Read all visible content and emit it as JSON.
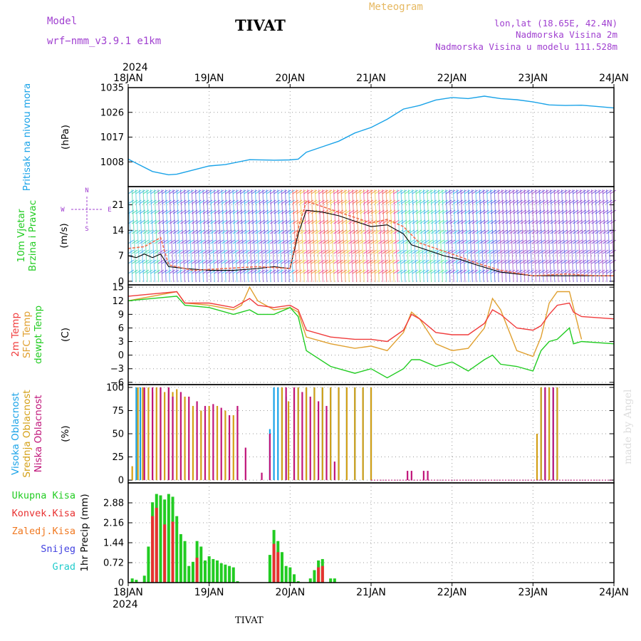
{
  "header": {
    "model_label": "Model",
    "model_name": "wrf−nmm_v3.9.1  e1km",
    "title": "TIVAT",
    "meteogram": "Meteogram",
    "lonlat": "lon,lat (18.65E, 42.4N)",
    "altitude": "Nadmorska Visina 2m",
    "model_altitude": "Nadmorska Visina u modelu 111.528m",
    "year_top": "2024",
    "year_bottom": "2024",
    "footer_station": "TIVAT",
    "watermark": "made by Angel"
  },
  "colors": {
    "pressure": "#1aa3e8",
    "temp2m": "#f03c3c",
    "sfc": "#e0a030",
    "dewpt": "#22cc22",
    "high": "#1aa3e8",
    "mid": "#d4a017",
    "low": "#c0157a",
    "total": "#22cc22",
    "conv": "#e83030",
    "frz": "#f07820",
    "snow": "#4040e0",
    "grad": "#22cccc",
    "header_purple": "#a040d0",
    "meteogram": "#e6b860",
    "grid": "#999999"
  },
  "chart_data": {
    "type": "meteogram",
    "x_ticks": [
      "18JAN",
      "19JAN",
      "20JAN",
      "21JAN",
      "22JAN",
      "23JAN",
      "24JAN"
    ],
    "x_range_days": [
      0,
      6
    ],
    "panels": [
      {
        "id": "pressure",
        "ylabel_lines": [
          "Pritisak na nivou mora"
        ],
        "unit": "(hPa)",
        "yticks": [
          "1008",
          "1017",
          "1026",
          "1035"
        ],
        "ylim": [
          999,
          1035
        ],
        "series": [
          {
            "key": "pressure",
            "x": [
              0.0,
              0.1,
              0.3,
              0.5,
              0.6,
              0.8,
              1.0,
              1.2,
              1.5,
              1.8,
              2.0,
              2.1,
              2.2,
              2.4,
              2.6,
              2.8,
              3.0,
              3.2,
              3.4,
              3.6,
              3.8,
              4.0,
              4.2,
              4.4,
              4.6,
              4.8,
              5.0,
              5.2,
              5.4,
              5.6,
              5.8,
              6.0
            ],
            "y": [
              1009.0,
              1007.5,
              1004.5,
              1003.3,
              1003.5,
              1005.0,
              1006.5,
              1007.0,
              1008.8,
              1008.6,
              1008.7,
              1009.0,
              1011.5,
              1013.5,
              1015.5,
              1018.5,
              1020.5,
              1023.5,
              1027.2,
              1028.5,
              1030.5,
              1031.4,
              1031.0,
              1031.9,
              1031.0,
              1030.6,
              1029.8,
              1028.7,
              1028.5,
              1028.6,
              1028.1,
              1027.6
            ]
          }
        ]
      },
      {
        "id": "wind",
        "ylabel_lines": [
          "10m Vjetar",
          "Brzina i Pravac"
        ],
        "unit": "(m/s)",
        "yticks": [
          "0",
          "7",
          "14",
          "21"
        ],
        "ylim": [
          -1,
          26
        ],
        "compass": {
          "n": "N",
          "s": "S",
          "e": "E",
          "w": "W"
        },
        "series": [
          {
            "key": "speed",
            "x": [
              0.0,
              0.1,
              0.2,
              0.3,
              0.4,
              0.5,
              0.7,
              1.0,
              1.3,
              1.6,
              1.8,
              2.0,
              2.1,
              2.2,
              2.4,
              2.6,
              2.8,
              3.0,
              3.2,
              3.4,
              3.5,
              3.7,
              3.9,
              4.1,
              4.3,
              4.6,
              5.0,
              5.4,
              5.8,
              6.0
            ],
            "y": [
              7.0,
              6.5,
              7.5,
              6.5,
              7.5,
              4.0,
              3.5,
              3.0,
              3.0,
              3.5,
              4.0,
              3.5,
              13.0,
              19.5,
              19.0,
              18.0,
              16.5,
              15.0,
              15.5,
              13.0,
              10.0,
              8.5,
              7.0,
              6.0,
              4.5,
              2.5,
              1.5,
              1.5,
              1.5,
              1.5
            ]
          },
          {
            "key": "gust",
            "x": [
              0.0,
              0.2,
              0.4,
              0.5,
              0.8,
              1.2,
              1.6,
              2.0,
              2.1,
              2.2,
              2.4,
              2.6,
              2.8,
              3.0,
              3.2,
              3.4,
              3.6,
              3.8,
              4.0,
              4.3,
              4.6,
              5.0,
              5.4,
              5.8,
              6.0
            ],
            "y": [
              9.0,
              9.5,
              12.0,
              4.5,
              3.0,
              3.5,
              4.0,
              3.5,
              14.5,
              22.0,
              20.5,
              19.0,
              17.5,
              16.0,
              17.0,
              15.0,
              10.5,
              9.0,
              7.5,
              5.0,
              3.0,
              1.5,
              2.0,
              1.5,
              1.5
            ]
          }
        ]
      },
      {
        "id": "temperature",
        "ylabel_lines": [
          "2m Temp",
          "SFC Temp",
          "dewpt Temp"
        ],
        "unit": "(C)",
        "yticks": [
          "−6",
          "−3",
          "0",
          "3",
          "6",
          "9",
          "12",
          "15"
        ],
        "ylim": [
          -6.5,
          15.5
        ],
        "series": [
          {
            "key": "sfc",
            "x": [
              0.0,
              0.3,
              0.6,
              0.7,
              1.0,
              1.3,
              1.4,
              1.5,
              1.6,
              1.8,
              2.0,
              2.1,
              2.2,
              2.5,
              2.8,
              3.0,
              3.2,
              3.4,
              3.5,
              3.6,
              3.8,
              4.0,
              4.2,
              4.4,
              4.5,
              4.6,
              4.8,
              5.0,
              5.1,
              5.2,
              5.3,
              5.45,
              5.5,
              5.6
            ],
            "y": [
              12.0,
              13.0,
              14.0,
              11.5,
              11.0,
              10.0,
              11.0,
              15.0,
              12.0,
              10.0,
              10.5,
              9.5,
              4.0,
              2.5,
              1.5,
              2.0,
              1.0,
              5.0,
              9.5,
              8.0,
              2.5,
              1.0,
              1.5,
              6.0,
              12.5,
              10.0,
              1.0,
              -0.3,
              4.0,
              11.5,
              14.0,
              14.0,
              10.5,
              3.5
            ]
          },
          {
            "key": "temp2m",
            "x": [
              0.0,
              0.3,
              0.6,
              0.7,
              1.0,
              1.3,
              1.4,
              1.5,
              1.6,
              1.8,
              2.0,
              2.1,
              2.2,
              2.5,
              2.8,
              3.0,
              3.2,
              3.4,
              3.5,
              3.6,
              3.8,
              4.0,
              4.2,
              4.4,
              4.5,
              4.6,
              4.8,
              5.0,
              5.1,
              5.2,
              5.3,
              5.45,
              5.5,
              5.6,
              6.0
            ],
            "y": [
              13.0,
              13.5,
              14.0,
              11.5,
              11.5,
              10.5,
              11.5,
              12.5,
              11.0,
              10.5,
              11.0,
              10.0,
              5.5,
              4.0,
              3.5,
              3.5,
              3.0,
              5.5,
              9.0,
              8.0,
              5.0,
              4.5,
              4.5,
              7.0,
              10.0,
              9.0,
              6.0,
              5.5,
              6.5,
              9.0,
              11.0,
              11.5,
              9.5,
              8.5,
              8.0
            ]
          },
          {
            "key": "dewpt",
            "x": [
              0.0,
              0.3,
              0.6,
              0.7,
              1.0,
              1.3,
              1.4,
              1.5,
              1.6,
              1.8,
              2.0,
              2.1,
              2.2,
              2.5,
              2.8,
              3.0,
              3.2,
              3.4,
              3.5,
              3.6,
              3.8,
              4.0,
              4.2,
              4.4,
              4.5,
              4.6,
              4.8,
              5.0,
              5.1,
              5.2,
              5.3,
              5.45,
              5.5,
              5.6,
              6.0
            ],
            "y": [
              12.0,
              12.5,
              13.0,
              11.0,
              10.5,
              9.0,
              9.5,
              10.0,
              9.0,
              9.0,
              10.5,
              8.5,
              1.0,
              -2.5,
              -4.0,
              -3.0,
              -5.0,
              -3.0,
              -1.0,
              -1.0,
              -2.5,
              -1.5,
              -3.5,
              -1.0,
              0.0,
              -2.0,
              -2.5,
              -3.5,
              1.0,
              3.0,
              3.5,
              6.0,
              2.5,
              3.0,
              2.5
            ]
          }
        ]
      },
      {
        "id": "cloud",
        "ylabel_lines": [
          "Visoka Oblacnost",
          "Srednja Oblacnost",
          "Niska Oblacnost"
        ],
        "unit": "(%)",
        "yticks": [
          "0",
          "25",
          "50",
          "75",
          "100"
        ],
        "ylim": [
          -3,
          103
        ],
        "bars": [
          {
            "key": "high",
            "x": [
              0.1,
              0.15,
              1.75,
              1.8,
              1.85,
              1.9,
              1.95,
              2.1,
              2.2,
              2.3,
              2.4,
              2.5,
              2.6,
              2.7,
              2.8,
              2.9,
              3.0,
              5.1,
              5.15,
              5.2,
              5.25,
              5.3
            ],
            "values": [
              100,
              100,
              55,
              100,
              100,
              100,
              90,
              100,
              100,
              100,
              100,
              100,
              100,
              100,
              100,
              100,
              100,
              100,
              100,
              100,
              100,
              100
            ]
          },
          {
            "key": "mid",
            "x": [
              0.05,
              0.12,
              0.18,
              0.25,
              0.3,
              0.35,
              0.4,
              0.45,
              0.5,
              0.55,
              0.6,
              0.7,
              0.8,
              0.9,
              1.0,
              1.1,
              1.2,
              1.3,
              1.9,
              1.98,
              2.05,
              2.1,
              2.2,
              2.3,
              2.4,
              2.5,
              2.6,
              2.7,
              2.8,
              2.9,
              3.0,
              5.05,
              5.1,
              5.2,
              5.3
            ],
            "values": [
              15,
              100,
              100,
              100,
              95,
              100,
              100,
              95,
              100,
              95,
              98,
              90,
              80,
              75,
              80,
              80,
              75,
              70,
              100,
              85,
              100,
              100,
              100,
              100,
              100,
              100,
              100,
              100,
              100,
              100,
              100,
              50,
              100,
              100,
              100
            ]
          },
          {
            "key": "low",
            "x": [
              0.2,
              0.3,
              0.4,
              0.5,
              0.55,
              0.65,
              0.75,
              0.85,
              0.95,
              1.05,
              1.15,
              1.25,
              1.35,
              1.45,
              1.65,
              1.75,
              1.95,
              2.05,
              2.15,
              2.25,
              2.35,
              2.45,
              2.55,
              3.45,
              3.5,
              3.65,
              3.7,
              5.15,
              5.25
            ],
            "values": [
              100,
              100,
              100,
              100,
              90,
              95,
              90,
              85,
              80,
              82,
              78,
              70,
              80,
              35,
              8,
              50,
              100,
              100,
              95,
              90,
              85,
              80,
              20,
              10,
              10,
              10,
              10,
              100,
              100
            ]
          }
        ]
      },
      {
        "id": "precip",
        "ylabel_lines": [
          "Ukupna Kisa",
          "Konvek.Kisa",
          "Zaledj.Kisa",
          "Snijeg",
          "Grad"
        ],
        "unit": "1hr Precip (mm)",
        "yticks": [
          "0",
          "0.72",
          "1.44",
          "2.16",
          "2.88"
        ],
        "ylim": [
          0,
          3.6
        ],
        "bars": [
          {
            "key": "total",
            "x": [
              0.05,
              0.1,
              0.2,
              0.25,
              0.3,
              0.35,
              0.4,
              0.45,
              0.5,
              0.55,
              0.6,
              0.65,
              0.7,
              0.75,
              0.8,
              0.85,
              0.9,
              0.95,
              1.0,
              1.05,
              1.1,
              1.15,
              1.2,
              1.25,
              1.3,
              1.35,
              1.75,
              1.8,
              1.85,
              1.9,
              1.95,
              2.0,
              2.05,
              2.1,
              2.25,
              2.3,
              2.35,
              2.4,
              2.5,
              2.55
            ],
            "values": [
              0.15,
              0.1,
              0.25,
              1.3,
              2.9,
              3.2,
              3.15,
              3.0,
              3.2,
              3.1,
              2.4,
              1.75,
              1.5,
              0.6,
              0.75,
              1.5,
              1.3,
              0.8,
              0.95,
              0.85,
              0.8,
              0.7,
              0.65,
              0.6,
              0.55,
              0.05,
              1.0,
              1.9,
              1.5,
              1.1,
              0.6,
              0.55,
              0.3,
              0.05,
              0.15,
              0.45,
              0.8,
              0.85,
              0.15,
              0.15
            ]
          },
          {
            "key": "conv",
            "x": [
              0.3,
              0.35,
              0.45,
              0.55,
              0.85,
              1.8,
              1.85,
              2.35,
              2.4
            ],
            "values": [
              2.4,
              2.7,
              2.1,
              2.2,
              0.9,
              1.4,
              1.1,
              0.55,
              0.6
            ]
          }
        ]
      }
    ]
  }
}
